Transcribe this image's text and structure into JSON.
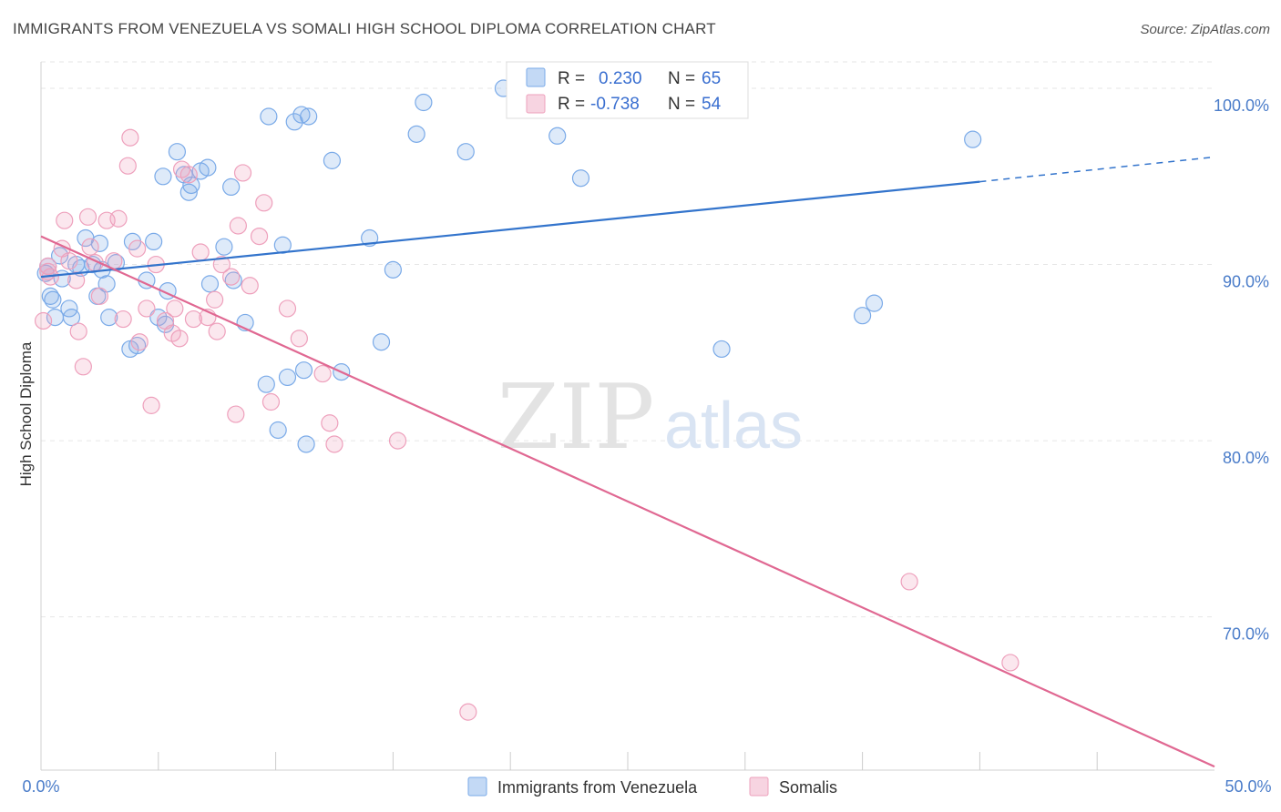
{
  "header": {
    "title": "IMMIGRANTS FROM VENEZUELA VS SOMALI HIGH SCHOOL DIPLOMA CORRELATION CHART",
    "source": "Source: ZipAtlas.com"
  },
  "watermark": {
    "zip": "ZIP",
    "atlas": "atlas"
  },
  "legend": {
    "rows": [
      {
        "r_label": "R =",
        "r_value": "0.230",
        "n_label": "N =",
        "n_value": "65"
      },
      {
        "r_label": "R =",
        "r_value": "-0.738",
        "n_label": "N =",
        "n_value": "54"
      }
    ]
  },
  "chart_data": {
    "type": "scatter",
    "title": "IMMIGRANTS FROM VENEZUELA VS SOMALI HIGH SCHOOL DIPLOMA CORRELATION CHART",
    "xlabel": "",
    "ylabel": "High School Diploma",
    "xlim": [
      0,
      50
    ],
    "ylim": [
      61.3,
      101.5
    ],
    "x_tick_labels": [
      "0.0%",
      "50.0%"
    ],
    "y_ticks": [
      70,
      80,
      90,
      100
    ],
    "y_tick_labels": [
      "70.0%",
      "80.0%",
      "90.0%",
      "100.0%"
    ],
    "grid": true,
    "legend_position": "top-center",
    "series": [
      {
        "name": "Immigrants from Venezuela",
        "color": "#7aaae8",
        "fill": "rgba(122,170,232,0.25)",
        "line_color": "#3374cc",
        "r": 0.23,
        "n": 65,
        "trend": {
          "x1": 0.0,
          "y1": 89.3,
          "x2": 40.0,
          "y2": 94.7,
          "dash_to_x": 50.0,
          "dash_to_y": 96.1
        },
        "points": [
          [
            0.3,
            89.9
          ],
          [
            0.4,
            88.2
          ],
          [
            0.5,
            88.0
          ],
          [
            0.6,
            87.0
          ],
          [
            0.8,
            90.5
          ],
          [
            0.9,
            89.2
          ],
          [
            1.2,
            87.5
          ],
          [
            1.3,
            87.0
          ],
          [
            1.5,
            90.0
          ],
          [
            1.7,
            89.8
          ],
          [
            1.9,
            91.5
          ],
          [
            2.2,
            90.0
          ],
          [
            2.4,
            88.2
          ],
          [
            2.5,
            91.2
          ],
          [
            2.6,
            89.7
          ],
          [
            2.8,
            88.9
          ],
          [
            2.9,
            87.0
          ],
          [
            3.2,
            90.1
          ],
          [
            3.8,
            85.2
          ],
          [
            3.9,
            91.3
          ],
          [
            4.1,
            85.4
          ],
          [
            4.5,
            89.1
          ],
          [
            4.8,
            91.3
          ],
          [
            5.0,
            87.0
          ],
          [
            5.2,
            95.0
          ],
          [
            5.3,
            86.6
          ],
          [
            5.4,
            88.5
          ],
          [
            5.8,
            96.4
          ],
          [
            6.1,
            95.1
          ],
          [
            6.3,
            94.1
          ],
          [
            6.4,
            94.5
          ],
          [
            6.8,
            95.3
          ],
          [
            7.1,
            95.5
          ],
          [
            7.2,
            88.9
          ],
          [
            7.8,
            91.0
          ],
          [
            8.1,
            94.4
          ],
          [
            8.2,
            89.1
          ],
          [
            8.7,
            86.7
          ],
          [
            9.6,
            83.2
          ],
          [
            9.7,
            98.4
          ],
          [
            10.1,
            80.6
          ],
          [
            10.3,
            91.1
          ],
          [
            10.5,
            83.6
          ],
          [
            10.8,
            98.1
          ],
          [
            11.1,
            98.5
          ],
          [
            11.2,
            84.0
          ],
          [
            11.3,
            79.8
          ],
          [
            11.4,
            98.4
          ],
          [
            12.4,
            95.9
          ],
          [
            12.8,
            83.9
          ],
          [
            14.0,
            91.5
          ],
          [
            14.5,
            85.6
          ],
          [
            15.0,
            89.7
          ],
          [
            16.0,
            97.4
          ],
          [
            16.3,
            99.2
          ],
          [
            18.1,
            96.4
          ],
          [
            19.7,
            100.0
          ],
          [
            22.0,
            97.3
          ],
          [
            23.0,
            94.9
          ],
          [
            23.8,
            99.9
          ],
          [
            29.0,
            85.2
          ],
          [
            35.0,
            87.1
          ],
          [
            35.5,
            87.8
          ],
          [
            39.7,
            97.1
          ],
          [
            0.2,
            89.5
          ]
        ]
      },
      {
        "name": "Somalis",
        "color": "#eea0bc",
        "fill": "rgba(238,160,188,0.25)",
        "line_color": "#e06892",
        "r": -0.738,
        "n": 54,
        "trend": {
          "x1": 0.0,
          "y1": 91.6,
          "x2": 50.0,
          "y2": 61.5
        },
        "points": [
          [
            0.1,
            86.8
          ],
          [
            0.3,
            89.9
          ],
          [
            0.4,
            89.3
          ],
          [
            0.9,
            90.9
          ],
          [
            1.0,
            92.5
          ],
          [
            1.2,
            90.2
          ],
          [
            1.5,
            89.1
          ],
          [
            1.6,
            86.2
          ],
          [
            1.8,
            84.2
          ],
          [
            2.0,
            92.7
          ],
          [
            2.1,
            91.0
          ],
          [
            2.3,
            90.1
          ],
          [
            2.5,
            88.2
          ],
          [
            2.8,
            92.5
          ],
          [
            3.1,
            90.2
          ],
          [
            3.3,
            92.6
          ],
          [
            3.5,
            86.9
          ],
          [
            3.7,
            95.6
          ],
          [
            3.8,
            97.2
          ],
          [
            4.1,
            90.9
          ],
          [
            4.2,
            85.6
          ],
          [
            4.5,
            87.5
          ],
          [
            4.7,
            82.0
          ],
          [
            4.9,
            90.0
          ],
          [
            5.3,
            86.8
          ],
          [
            5.6,
            86.1
          ],
          [
            5.7,
            87.5
          ],
          [
            5.9,
            85.8
          ],
          [
            6.0,
            95.4
          ],
          [
            6.3,
            95.1
          ],
          [
            6.5,
            86.9
          ],
          [
            6.8,
            90.7
          ],
          [
            7.1,
            87.0
          ],
          [
            7.4,
            88.0
          ],
          [
            7.5,
            86.2
          ],
          [
            7.7,
            90.0
          ],
          [
            8.1,
            89.3
          ],
          [
            8.3,
            81.5
          ],
          [
            8.4,
            92.2
          ],
          [
            8.6,
            95.2
          ],
          [
            8.9,
            88.8
          ],
          [
            9.3,
            91.6
          ],
          [
            9.5,
            93.5
          ],
          [
            9.8,
            82.2
          ],
          [
            10.5,
            87.5
          ],
          [
            11.0,
            85.8
          ],
          [
            12.0,
            83.8
          ],
          [
            12.3,
            81.0
          ],
          [
            12.5,
            79.8
          ],
          [
            15.2,
            80.0
          ],
          [
            18.2,
            64.6
          ],
          [
            37.0,
            72.0
          ],
          [
            41.3,
            67.4
          ],
          [
            0.3,
            89.6
          ]
        ]
      }
    ]
  }
}
